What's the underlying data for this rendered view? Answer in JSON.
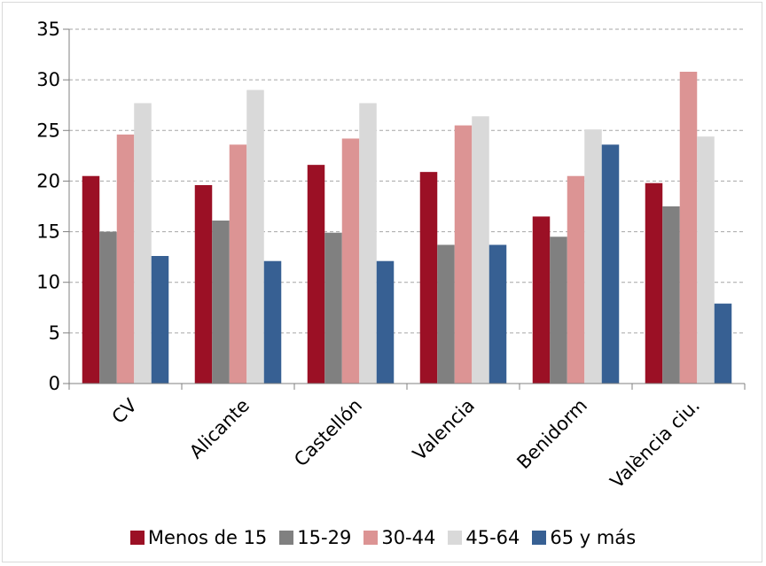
{
  "chart_data": {
    "type": "bar",
    "categories": [
      "CV",
      "Alicante",
      "Castellón",
      "Valencia",
      "Benidorm",
      "València ciu."
    ],
    "series": [
      {
        "name": "Menos de 15",
        "color": "#9b1025",
        "values": [
          20.5,
          19.6,
          21.6,
          20.9,
          16.5,
          19.8
        ]
      },
      {
        "name": "15-29",
        "color": "#808080",
        "values": [
          15.0,
          16.1,
          14.9,
          13.7,
          14.5,
          17.5
        ]
      },
      {
        "name": "30-44",
        "color": "#dc9494",
        "values": [
          24.6,
          23.6,
          24.2,
          25.5,
          20.5,
          30.8
        ]
      },
      {
        "name": "45-64",
        "color": "#d9d9d9",
        "values": [
          27.7,
          29.0,
          27.7,
          26.4,
          25.1,
          24.4
        ]
      },
      {
        "name": "65 y más",
        "color": "#376093",
        "values": [
          12.6,
          12.1,
          12.1,
          13.7,
          23.6,
          7.9
        ]
      }
    ],
    "ylim": [
      0,
      35
    ],
    "yticks": [
      0,
      5,
      10,
      15,
      20,
      25,
      30,
      35
    ],
    "grid": true,
    "legend_position": "bottom"
  }
}
